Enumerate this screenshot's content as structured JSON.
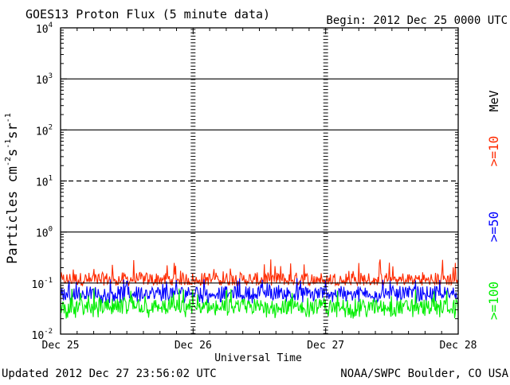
{
  "chart_data": {
    "type": "line",
    "title": "GOES13 Proton Flux (5 minute data)",
    "begin_label": "Begin: 2012 Dec 25 0000 UTC",
    "xlabel": "Universal Time",
    "ylabel": "Particles cm-2s-1sr-1",
    "ylabel_parts": {
      "main": "Particles cm",
      "exp1": "-2",
      "s": "s",
      "exp2": "-1",
      "sr": "sr",
      "exp3": "-1"
    },
    "yscale": "log",
    "ylim": [
      0.01,
      10000
    ],
    "y_ticks": [
      {
        "base": "10",
        "exp": "4",
        "value": 10000
      },
      {
        "base": "10",
        "exp": "3",
        "value": 1000
      },
      {
        "base": "10",
        "exp": "2",
        "value": 100
      },
      {
        "base": "10",
        "exp": "1",
        "value": 10
      },
      {
        "base": "10",
        "exp": "0",
        "value": 1
      },
      {
        "base": "10",
        "exp": "-1",
        "value": 0.1
      },
      {
        "base": "10",
        "exp": "-2",
        "value": 0.01
      }
    ],
    "x_ticks": [
      "Dec 25",
      "Dec 26",
      "Dec 27",
      "Dec 28"
    ],
    "xlim": [
      "2012-12-25",
      "2012-12-28"
    ],
    "threshold_lines": [
      {
        "value": 1000,
        "style": "solid"
      },
      {
        "value": 100,
        "style": "solid"
      },
      {
        "value": 10,
        "style": "dashed"
      },
      {
        "value": 1,
        "style": "solid"
      },
      {
        "value": 0.1,
        "style": "solid"
      }
    ],
    "unit_label": "MeV",
    "series": [
      {
        "name": ">=10",
        "color": "#ff2a00",
        "approx_level": 0.12,
        "range": [
          0.09,
          0.3
        ]
      },
      {
        "name": ">=50",
        "color": "#0000ff",
        "approx_level": 0.065,
        "range": [
          0.04,
          0.13
        ]
      },
      {
        "name": ">=100",
        "color": "#00ee00",
        "approx_level": 0.035,
        "range": [
          0.02,
          0.08
        ]
      }
    ]
  },
  "footer": {
    "updated": "Updated 2012 Dec 27 23:56:02 UTC",
    "source": "NOAA/SWPC Boulder, CO USA"
  }
}
